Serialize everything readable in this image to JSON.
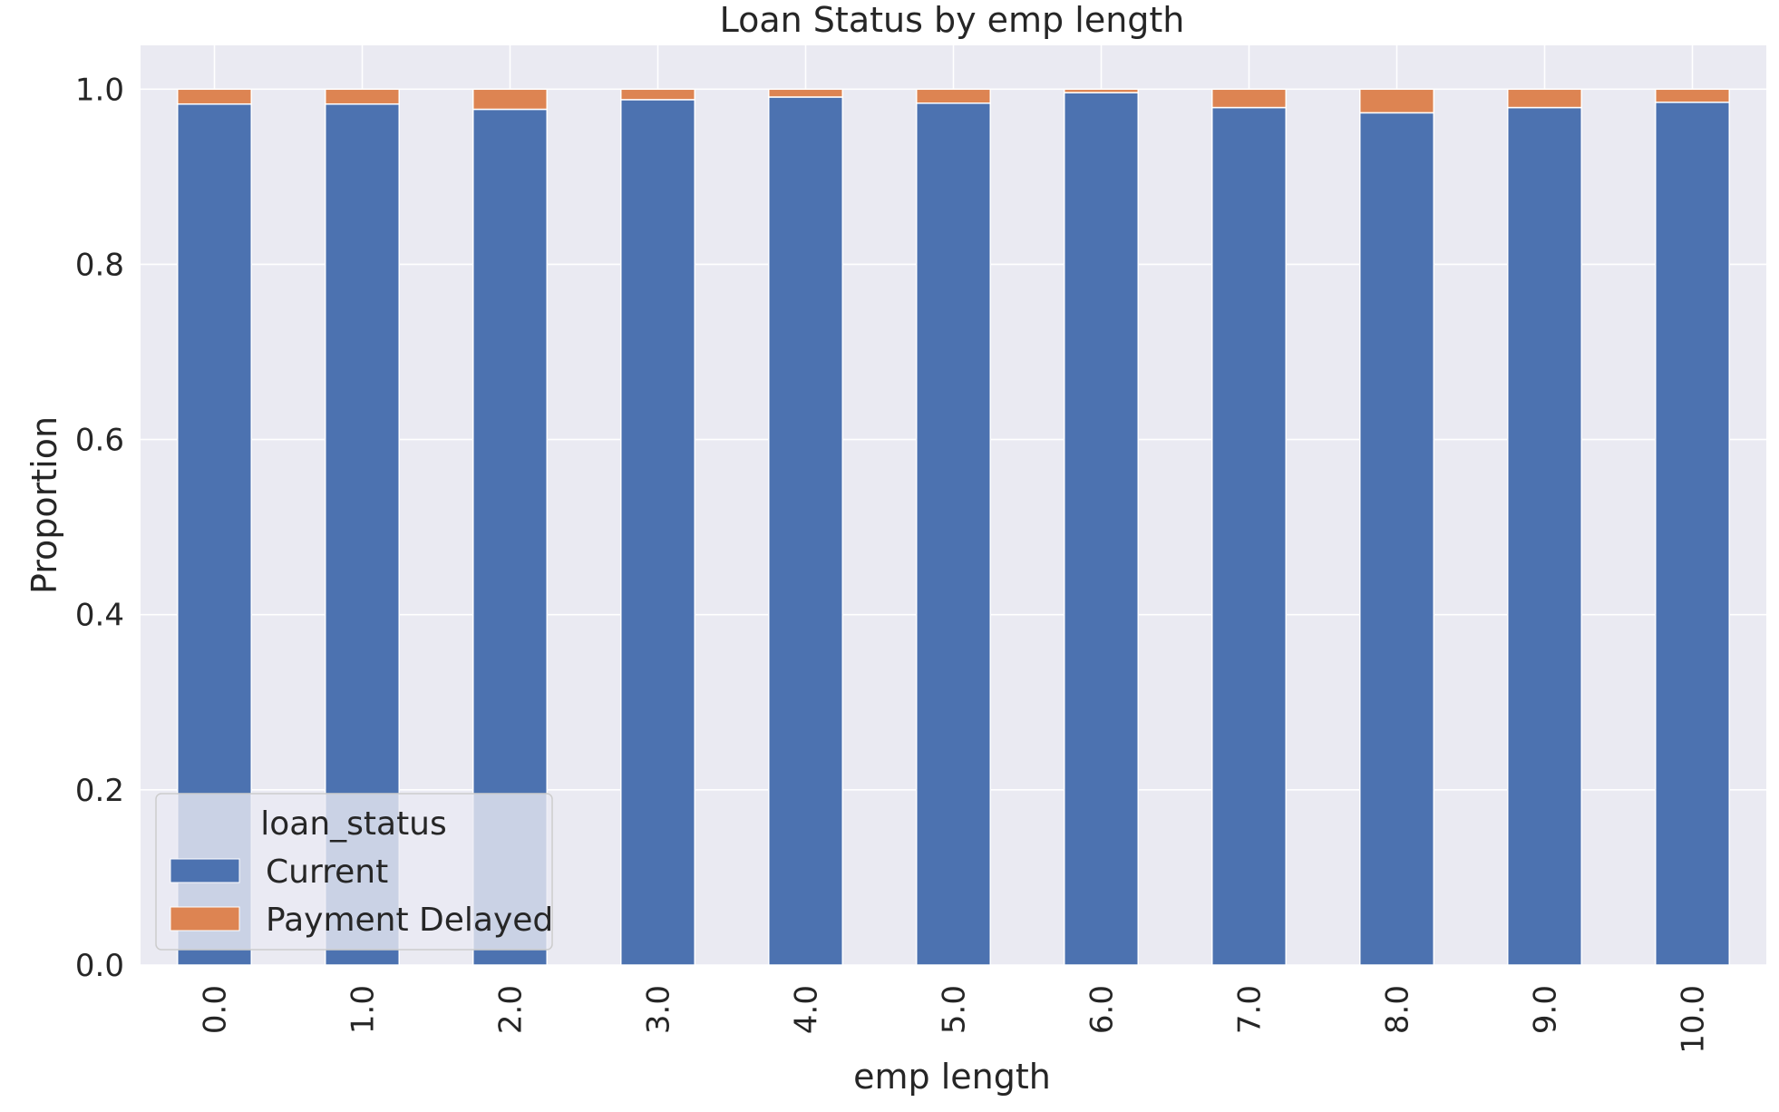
{
  "chart_data": {
    "type": "bar",
    "stacked": true,
    "title": "Loan Status by emp length",
    "xlabel": "emp length",
    "ylabel": "Proportion",
    "ylim": [
      0,
      1.05
    ],
    "yticks": [
      "0.0",
      "0.2",
      "0.4",
      "0.6",
      "0.8",
      "1.0"
    ],
    "grid": true,
    "legend_placement": "lower-left",
    "legend_title": "loan_status",
    "categories": [
      "0.0",
      "1.0",
      "2.0",
      "3.0",
      "4.0",
      "5.0",
      "6.0",
      "7.0",
      "8.0",
      "9.0",
      "10.0"
    ],
    "series": [
      {
        "name": "Current",
        "color": "#4c72b0",
        "values": [
          0.983,
          0.983,
          0.977,
          0.988,
          0.991,
          0.984,
          0.996,
          0.979,
          0.973,
          0.979,
          0.985
        ]
      },
      {
        "name": "Payment Delayed",
        "color": "#dd8452",
        "values": [
          0.017,
          0.017,
          0.023,
          0.012,
          0.009,
          0.016,
          0.004,
          0.021,
          0.027,
          0.021,
          0.015
        ]
      }
    ]
  }
}
